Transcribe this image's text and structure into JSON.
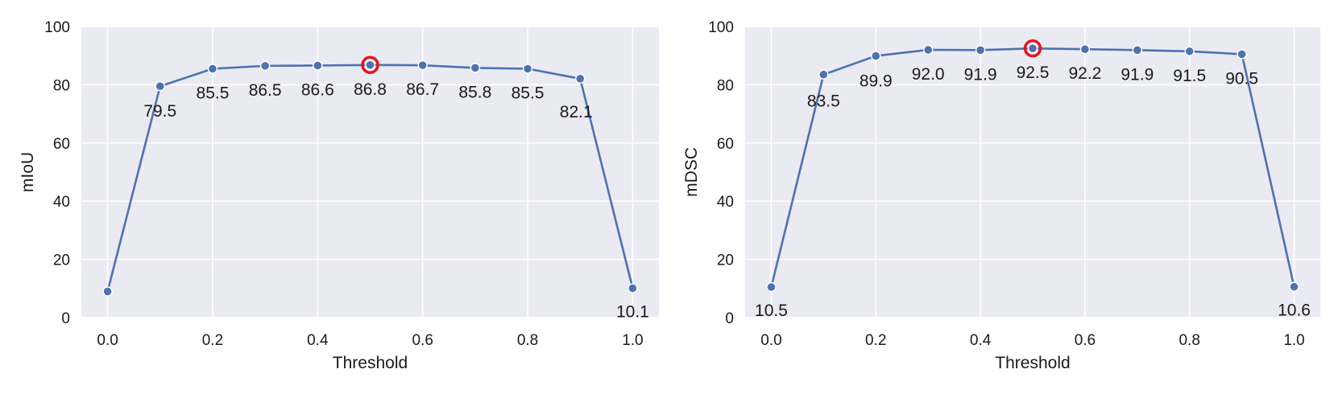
{
  "chart_data": [
    {
      "type": "line",
      "title": "",
      "xlabel": "Threshold",
      "ylabel": "mIoU",
      "xlim": [
        -0.05,
        1.05
      ],
      "ylim": [
        0,
        100
      ],
      "xticks": [
        "0.0",
        "0.2",
        "0.4",
        "0.6",
        "0.8",
        "1.0"
      ],
      "yticks": [
        "0",
        "20",
        "40",
        "60",
        "80",
        "100"
      ],
      "grid": true,
      "x": [
        0.0,
        0.1,
        0.2,
        0.3,
        0.4,
        0.5,
        0.6,
        0.7,
        0.8,
        0.9,
        1.0
      ],
      "values": [
        9.0,
        79.5,
        85.5,
        86.5,
        86.6,
        86.8,
        86.7,
        85.8,
        85.5,
        82.1,
        10.1
      ],
      "point_labels": [
        "",
        "79.5",
        "85.5",
        "86.5",
        "86.6",
        "86.8",
        "86.7",
        "85.8",
        "85.5",
        "82.1",
        "10.1"
      ],
      "highlight_x": 0.5,
      "line_color": "#4c72b0",
      "highlight_color": "#e8141c",
      "background_color": "#eaeaf2"
    },
    {
      "type": "line",
      "title": "",
      "xlabel": "Threshold",
      "ylabel": "mDSC",
      "xlim": [
        -0.05,
        1.05
      ],
      "ylim": [
        0,
        100
      ],
      "xticks": [
        "0.0",
        "0.2",
        "0.4",
        "0.6",
        "0.8",
        "1.0"
      ],
      "yticks": [
        "0",
        "20",
        "40",
        "60",
        "80",
        "100"
      ],
      "grid": true,
      "x": [
        0.0,
        0.1,
        0.2,
        0.3,
        0.4,
        0.5,
        0.6,
        0.7,
        0.8,
        0.9,
        1.0
      ],
      "values": [
        10.5,
        83.5,
        89.9,
        92.0,
        91.9,
        92.5,
        92.2,
        91.9,
        91.5,
        90.5,
        10.6
      ],
      "point_labels": [
        "10.5",
        "83.5",
        "89.9",
        "92.0",
        "91.9",
        "92.5",
        "92.2",
        "91.9",
        "91.5",
        "90.5",
        "10.6"
      ],
      "highlight_x": 0.5,
      "line_color": "#4c72b0",
      "highlight_color": "#e8141c",
      "background_color": "#eaeaf2"
    }
  ]
}
